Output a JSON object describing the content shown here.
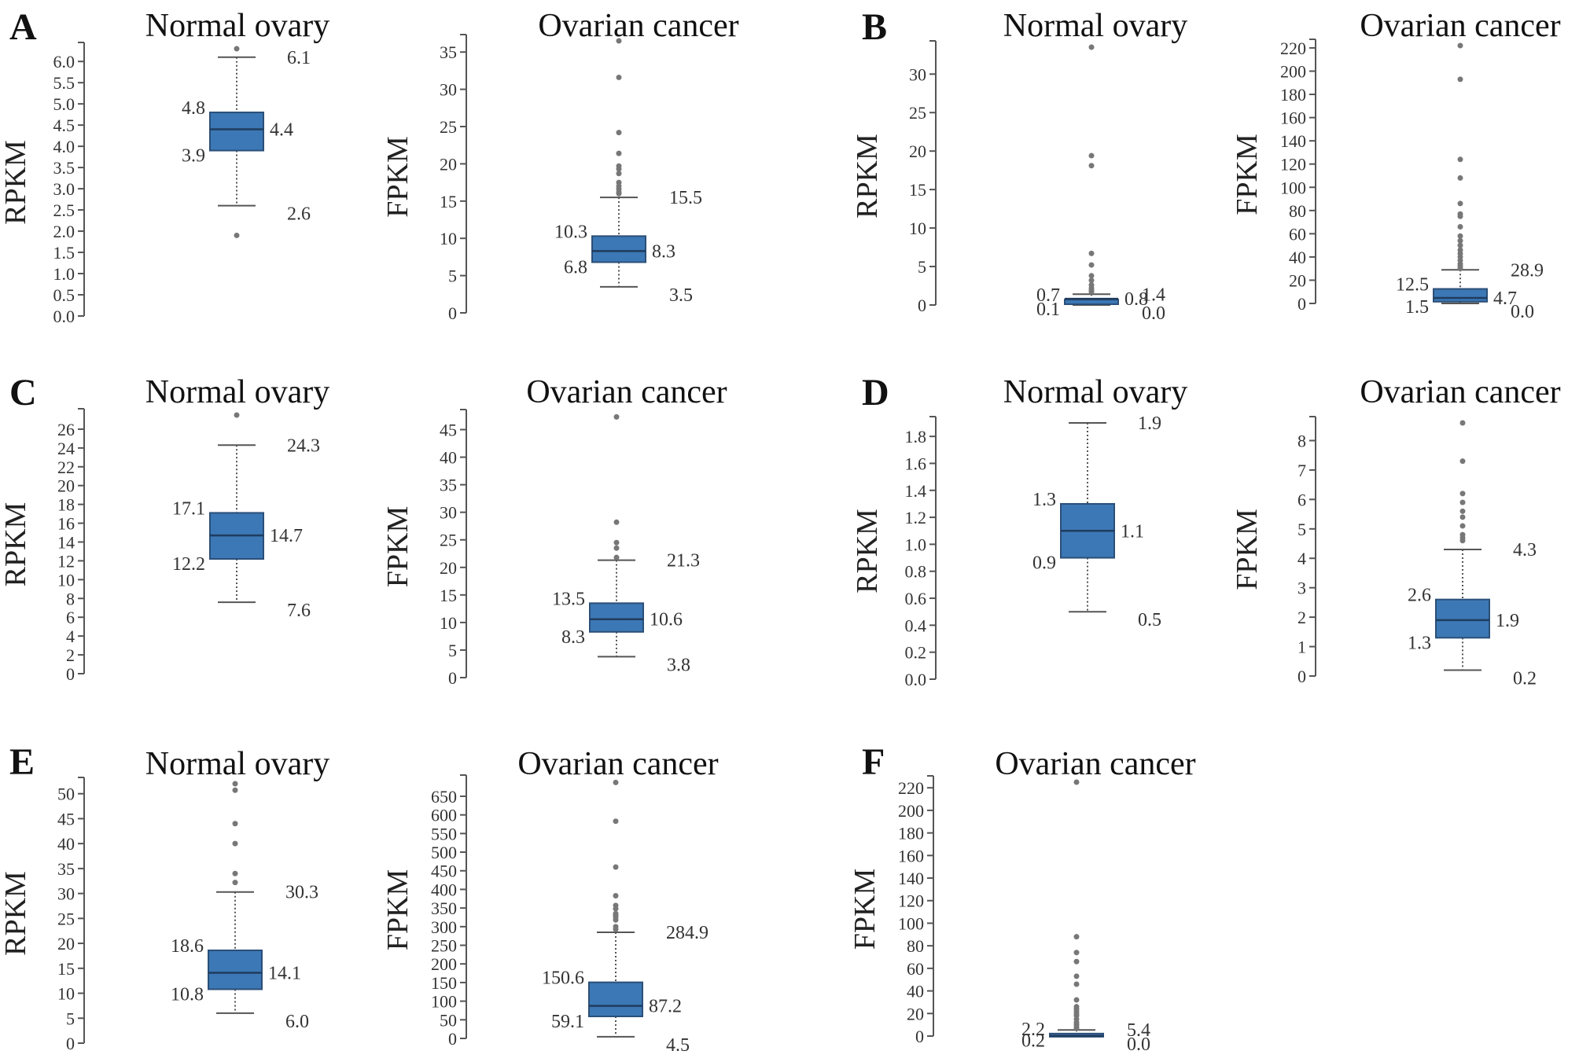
{
  "figure": {
    "panels": [
      "A",
      "B",
      "C",
      "D",
      "E",
      "F"
    ]
  },
  "chart_data": [
    {
      "type": "box",
      "panel": "A",
      "title": "Normal ovary",
      "ylabel": "RPKM",
      "ylim": [
        0,
        6.3
      ],
      "yticks": [
        0.0,
        0.5,
        1.0,
        1.5,
        2.0,
        2.5,
        3.0,
        3.5,
        4.0,
        4.5,
        5.0,
        5.5,
        6.0
      ],
      "tick_decimals": 1,
      "stats": {
        "whisker_high": 6.1,
        "q3": 4.8,
        "median": 4.4,
        "q1": 3.9,
        "whisker_low": 2.6
      },
      "labels": {
        "whisker_high": "6.1",
        "q3": "4.8",
        "median": "4.4",
        "q1": "3.9",
        "whisker_low": "2.6"
      },
      "outliers": [
        6.3,
        1.9
      ]
    },
    {
      "type": "box",
      "panel": "A",
      "title": "Ovarian cancer",
      "ylabel": "FPKM",
      "ylim": [
        0,
        36.5
      ],
      "yticks": [
        0,
        5,
        10,
        15,
        20,
        25,
        30,
        35
      ],
      "tick_decimals": 0,
      "stats": {
        "whisker_high": 15.5,
        "q3": 10.3,
        "median": 8.3,
        "q1": 6.8,
        "whisker_low": 3.5
      },
      "labels": {
        "whisker_high": "15.5",
        "q3": "10.3",
        "median": "8.3",
        "q1": "6.8",
        "whisker_low": "3.5"
      },
      "outliers": [
        36.5,
        31.6,
        24.2,
        21.4,
        19.7,
        19.3,
        18.7,
        17.5,
        17.0,
        16.6,
        16.2,
        16.0
      ]
    },
    {
      "type": "box",
      "panel": "B",
      "title": "Normal ovary",
      "ylabel": "RPKM",
      "ylim": [
        0,
        33.5
      ],
      "yticks": [
        0,
        5,
        10,
        15,
        20,
        25,
        30
      ],
      "tick_decimals": 0,
      "stats": {
        "whisker_high": 1.4,
        "q3": 0.7,
        "median": 0.8,
        "q1": 0.1,
        "whisker_low": 0.0
      },
      "labels": {
        "whisker_high": "1.4",
        "q3": "0.7",
        "median": "0.8",
        "q1": "0.1",
        "whisker_low": "0.0"
      },
      "outliers": [
        33.5,
        19.4,
        18.1,
        6.7,
        5.2,
        3.8,
        3.2,
        2.6,
        2.2,
        1.9,
        1.7
      ]
    },
    {
      "type": "box",
      "panel": "B",
      "title": "Ovarian cancer",
      "ylabel": "FPKM",
      "ylim": [
        0,
        222
      ],
      "yticks": [
        0,
        20,
        40,
        60,
        80,
        100,
        120,
        140,
        160,
        180,
        200,
        220
      ],
      "tick_decimals": 0,
      "stats": {
        "whisker_high": 28.9,
        "q3": 12.5,
        "median": 4.7,
        "q1": 1.5,
        "whisker_low": 0.0
      },
      "labels": {
        "whisker_high": "28.9",
        "q3": "12.5",
        "median": "4.7",
        "q1": "1.5",
        "whisker_low": "0.0"
      },
      "outliers": [
        222,
        193,
        124,
        108,
        86,
        77,
        75,
        66,
        58,
        54,
        50,
        46,
        43,
        40,
        37,
        34,
        32,
        30
      ]
    },
    {
      "type": "box",
      "panel": "C",
      "title": "Normal ovary",
      "ylabel": "RPKM",
      "ylim": [
        0,
        27.5
      ],
      "yticks": [
        0,
        2,
        4,
        6,
        8,
        10,
        12,
        14,
        16,
        18,
        20,
        22,
        24,
        26
      ],
      "tick_decimals": 0,
      "stats": {
        "whisker_high": 24.3,
        "q3": 17.1,
        "median": 14.7,
        "q1": 12.2,
        "whisker_low": 7.6
      },
      "labels": {
        "whisker_high": "24.3",
        "q3": "17.1",
        "median": "14.7",
        "q1": "12.2",
        "whisker_low": "7.6"
      },
      "outliers": [
        27.5
      ]
    },
    {
      "type": "box",
      "panel": "C",
      "title": "Ovarian cancer",
      "ylabel": "FPKM",
      "ylim": [
        0,
        47.5
      ],
      "yticks": [
        0,
        5,
        10,
        15,
        20,
        25,
        30,
        35,
        40,
        45
      ],
      "tick_decimals": 0,
      "stats": {
        "whisker_high": 21.3,
        "q3": 13.5,
        "median": 10.6,
        "q1": 8.3,
        "whisker_low": 3.8
      },
      "labels": {
        "whisker_high": "21.3",
        "q3": "13.5",
        "median": "10.6",
        "q1": "8.3",
        "whisker_low": "3.8"
      },
      "outliers": [
        47.3,
        28.2,
        24.5,
        23.5,
        21.8
      ]
    },
    {
      "type": "box",
      "panel": "D",
      "title": "Normal ovary",
      "ylabel": "RPKM",
      "ylim": [
        0,
        1.9
      ],
      "yticks": [
        0.0,
        0.2,
        0.4,
        0.6,
        0.8,
        1.0,
        1.2,
        1.4,
        1.6,
        1.8
      ],
      "tick_decimals": 1,
      "stats": {
        "whisker_high": 1.9,
        "q3": 1.3,
        "median": 1.1,
        "q1": 0.9,
        "whisker_low": 0.5
      },
      "labels": {
        "whisker_high": "1.9",
        "q3": "1.3",
        "median": "1.1",
        "q1": "0.9",
        "whisker_low": "0.5"
      },
      "outliers": []
    },
    {
      "type": "box",
      "panel": "D",
      "title": "Ovarian cancer",
      "ylabel": "FPKM",
      "ylim": [
        0,
        8.6
      ],
      "yticks": [
        0,
        1,
        2,
        3,
        4,
        5,
        6,
        7,
        8
      ],
      "tick_decimals": 0,
      "stats": {
        "whisker_high": 4.3,
        "q3": 2.6,
        "median": 1.9,
        "q1": 1.3,
        "whisker_low": 0.2
      },
      "labels": {
        "whisker_high": "4.3",
        "q3": "2.6",
        "median": "1.9",
        "q1": "1.3",
        "whisker_low": "0.2"
      },
      "outliers": [
        8.6,
        7.3,
        6.2,
        5.9,
        5.6,
        5.4,
        5.1,
        4.8,
        4.7,
        4.6
      ]
    },
    {
      "type": "box",
      "panel": "E",
      "title": "Normal ovary",
      "ylabel": "RPKM",
      "ylim": [
        0,
        52
      ],
      "yticks": [
        0,
        5,
        10,
        15,
        20,
        25,
        30,
        35,
        40,
        45,
        50
      ],
      "tick_decimals": 0,
      "stats": {
        "whisker_high": 30.3,
        "q3": 18.6,
        "median": 14.1,
        "q1": 10.8,
        "whisker_low": 6.0
      },
      "labels": {
        "whisker_high": "30.3",
        "q3": "18.6",
        "median": "14.1",
        "q1": "10.8",
        "whisker_low": "6.0"
      },
      "outliers": [
        52.0,
        50.7,
        44.0,
        40.0,
        34.0,
        32.2
      ]
    },
    {
      "type": "box",
      "panel": "E",
      "title": "Ovarian cancer",
      "ylabel": "FPKM",
      "ylim": [
        0,
        690
      ],
      "yticks": [
        0,
        50,
        100,
        150,
        200,
        250,
        300,
        350,
        400,
        450,
        500,
        550,
        600,
        650
      ],
      "tick_decimals": 0,
      "stats": {
        "whisker_high": 284.9,
        "q3": 150.6,
        "median": 87.2,
        "q1": 59.1,
        "whisker_low": 4.5
      },
      "labels": {
        "whisker_high": "284.9",
        "q3": "150.6",
        "median": "87.2",
        "q1": "59.1",
        "whisker_low": "4.5"
      },
      "outliers": [
        687,
        583,
        460,
        383,
        357,
        348,
        335,
        330,
        325,
        318,
        300,
        293
      ]
    },
    {
      "type": "box",
      "panel": "F",
      "title": "Ovarian cancer",
      "ylabel": "FPKM",
      "ylim": [
        0,
        225
      ],
      "yticks": [
        0,
        20,
        40,
        60,
        80,
        100,
        120,
        140,
        160,
        180,
        200,
        220
      ],
      "tick_decimals": 0,
      "stats": {
        "whisker_high": 5.4,
        "q3": 2.2,
        "median": 0.2,
        "q1": 0.2,
        "whisker_low": 0.0
      },
      "labels": {
        "whisker_high": "5.4",
        "q3": "2.2",
        "median": "",
        "q1": "0.2",
        "whisker_low": "0.0"
      },
      "outliers": [
        225,
        88,
        74,
        66,
        53,
        46,
        32,
        26,
        24,
        22,
        20,
        18,
        15,
        12,
        10,
        8,
        7
      ]
    }
  ]
}
